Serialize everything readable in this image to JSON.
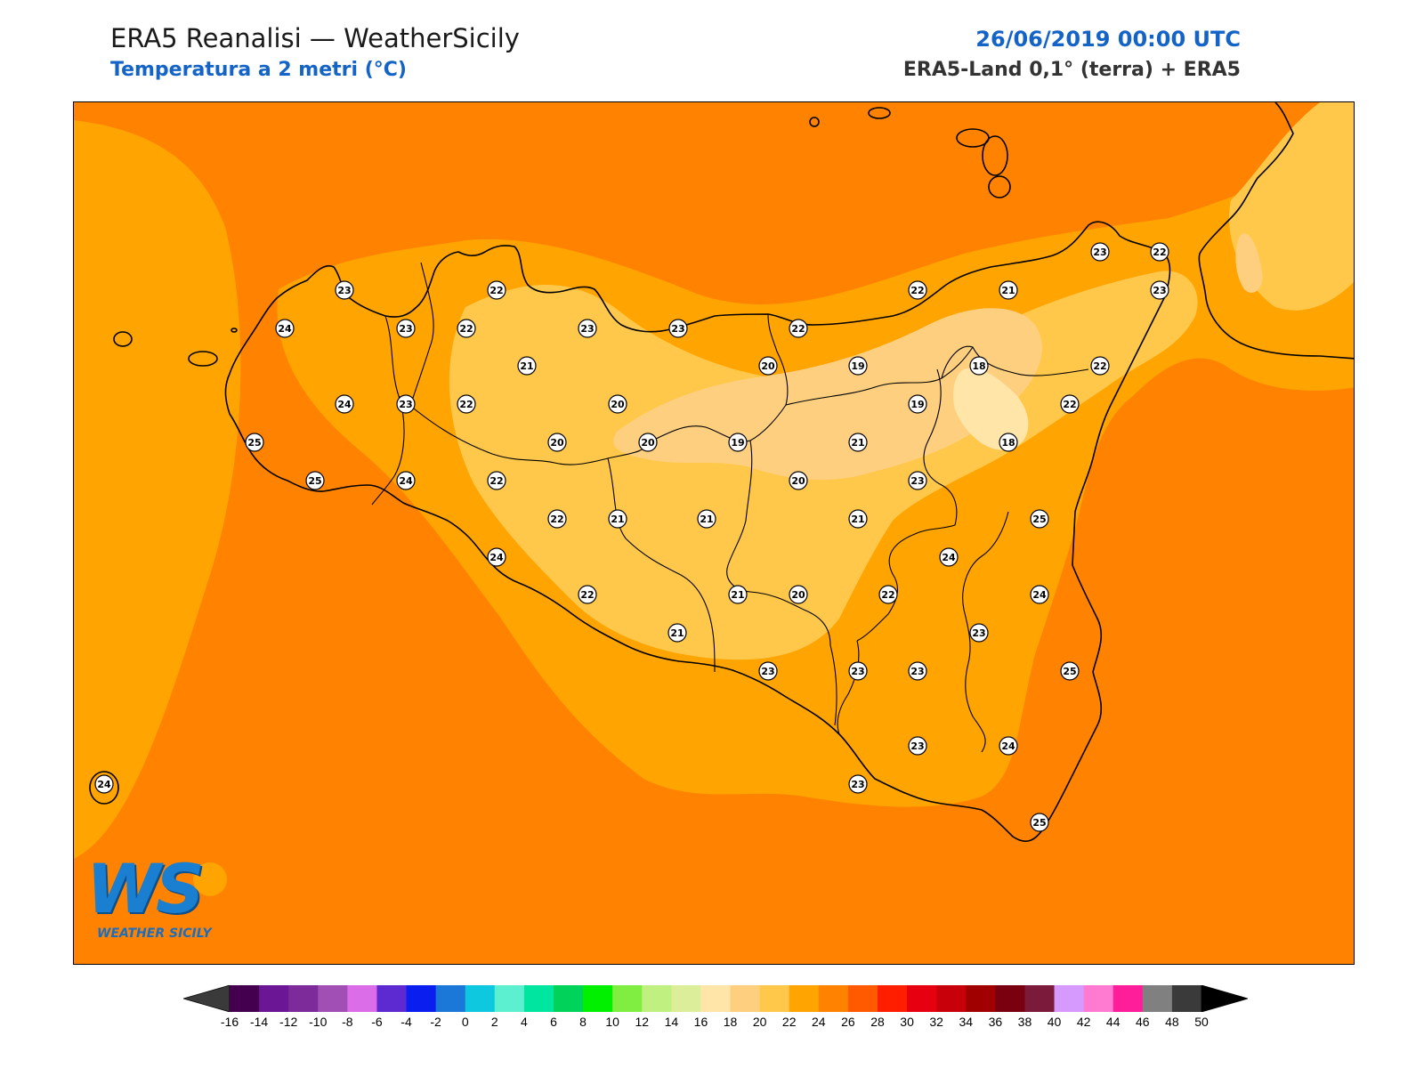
{
  "header": {
    "title": "ERA5 Reanalisi — WeatherSicily",
    "subtitle": "Temperatura a 2 metri (°C)",
    "datetime": "26/06/2019 00:00 UTC",
    "source": "ERA5-Land 0,1° (terra) + ERA5"
  },
  "logo": {
    "letters": "WS",
    "name": "WEATHER SICILY"
  },
  "colorbar": {
    "ticks": [
      "-16",
      "-14",
      "-12",
      "-10",
      "-8",
      "-6",
      "-4",
      "-2",
      "0",
      "2",
      "4",
      "6",
      "8",
      "10",
      "12",
      "14",
      "16",
      "18",
      "20",
      "22",
      "24",
      "26",
      "28",
      "30",
      "32",
      "34",
      "36",
      "38",
      "40",
      "42",
      "44",
      "46",
      "48",
      "50"
    ],
    "colors": [
      "#44004f",
      "#6a1695",
      "#7d2a9a",
      "#a24fb5",
      "#db6ee8",
      "#5c2ad0",
      "#0a1ef0",
      "#1b78d8",
      "#0ec8e0",
      "#5df0d0",
      "#00e6a0",
      "#00d25a",
      "#00f000",
      "#80ee40",
      "#bff080",
      "#dcee9a",
      "#ffe6a8",
      "#ffcf80",
      "#ffc84a",
      "#ffa400",
      "#ff8200",
      "#ff5a00",
      "#ff1e00",
      "#e60010",
      "#c8000a",
      "#a00000",
      "#7a0010",
      "#7c1a3c",
      "#d69aff",
      "#ff7ad0",
      "#ff1e9a",
      "#808080",
      "#3a3a3a"
    ]
  },
  "stations": [
    {
      "v": "23"
    },
    {
      "v": "22"
    },
    {
      "v": "24"
    },
    {
      "v": "23"
    },
    {
      "v": "22"
    },
    {
      "v": "23"
    },
    {
      "v": "23"
    },
    {
      "v": "22"
    },
    {
      "v": "22"
    },
    {
      "v": "21"
    },
    {
      "v": "23"
    },
    {
      "v": "22"
    },
    {
      "v": "23"
    },
    {
      "v": "21"
    },
    {
      "v": "20"
    },
    {
      "v": "19"
    },
    {
      "v": "18"
    },
    {
      "v": "22"
    },
    {
      "v": "24"
    },
    {
      "v": "23"
    },
    {
      "v": "22"
    },
    {
      "v": "20"
    },
    {
      "v": "19"
    },
    {
      "v": "22"
    },
    {
      "v": "25"
    },
    {
      "v": "20"
    },
    {
      "v": "20"
    },
    {
      "v": "19"
    },
    {
      "v": "21"
    },
    {
      "v": "18"
    },
    {
      "v": "25"
    },
    {
      "v": "24"
    },
    {
      "v": "22"
    },
    {
      "v": "20"
    },
    {
      "v": "23"
    },
    {
      "v": "22"
    },
    {
      "v": "21"
    },
    {
      "v": "21"
    },
    {
      "v": "21"
    },
    {
      "v": "25"
    },
    {
      "v": "24"
    },
    {
      "v": "24"
    },
    {
      "v": "22"
    },
    {
      "v": "21"
    },
    {
      "v": "20"
    },
    {
      "v": "22"
    },
    {
      "v": "24"
    },
    {
      "v": "21"
    },
    {
      "v": "23"
    },
    {
      "v": "25"
    },
    {
      "v": "23"
    },
    {
      "v": "23"
    },
    {
      "v": "23"
    },
    {
      "v": "23"
    },
    {
      "v": "24"
    },
    {
      "v": "24"
    },
    {
      "v": "23"
    },
    {
      "v": "25"
    }
  ]
}
